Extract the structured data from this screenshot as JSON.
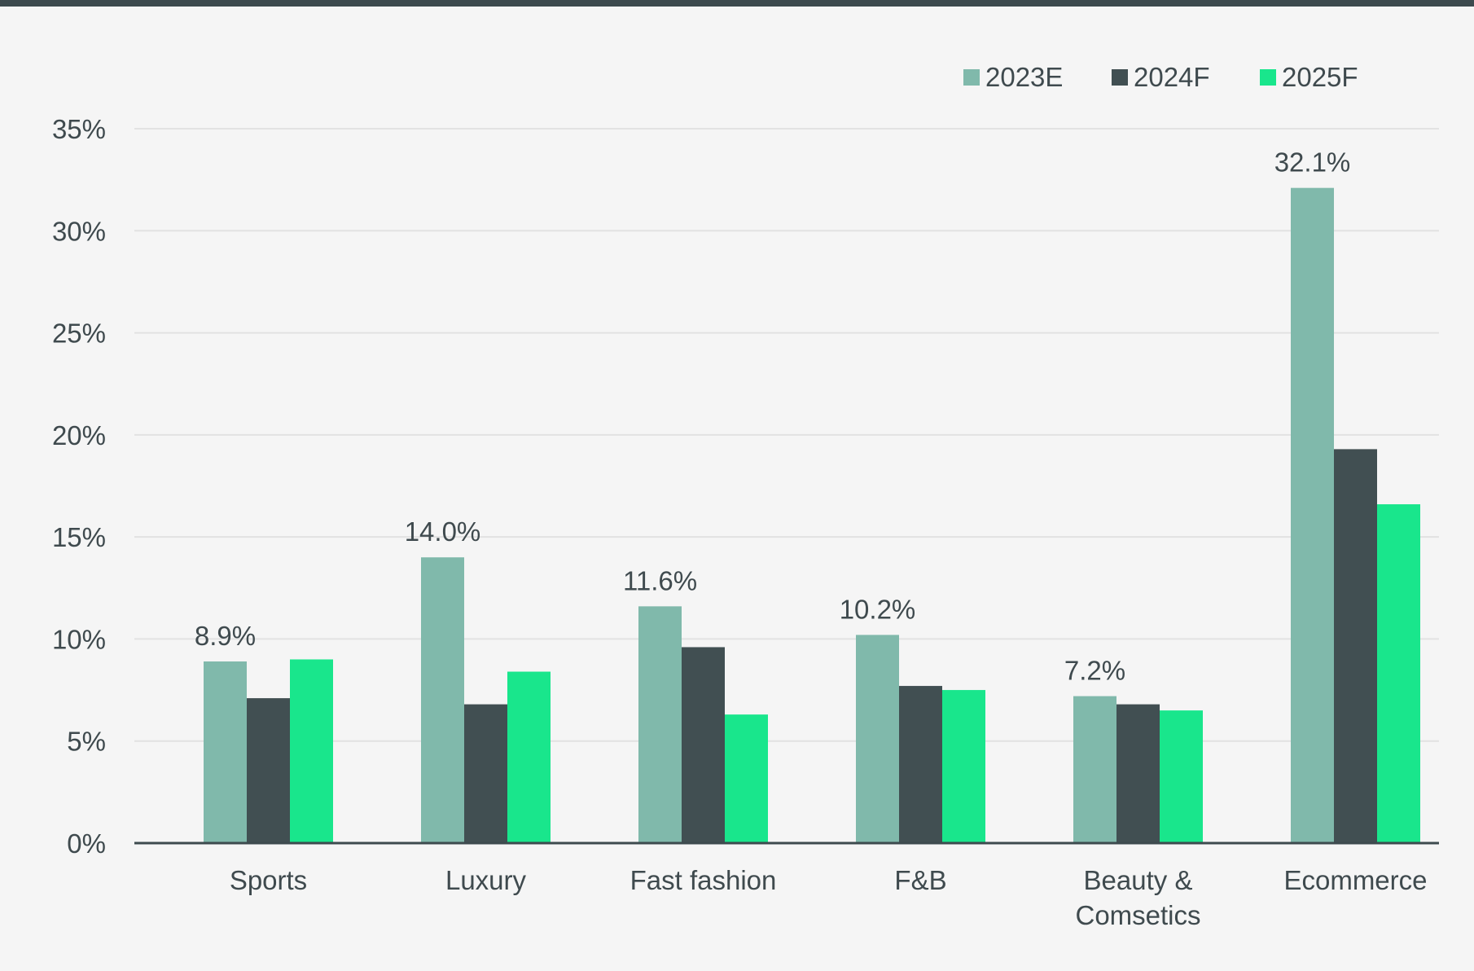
{
  "colors": {
    "background": "#f5f5f5",
    "top_border": "#3d4a4e",
    "gridline": "#e2e2e2",
    "axis": "#3d4a4e",
    "text": "#3f4a4e"
  },
  "chart_data": {
    "type": "bar",
    "title": "",
    "xlabel": "",
    "ylabel": "",
    "ylim": [
      0,
      35
    ],
    "y_ticks": [
      0,
      5,
      10,
      15,
      20,
      25,
      30,
      35
    ],
    "y_tick_labels": [
      "0%",
      "5%",
      "10%",
      "15%",
      "20%",
      "25%",
      "30%",
      "35%"
    ],
    "grid": true,
    "legend_position": "top-right",
    "categories": [
      [
        "Sports"
      ],
      [
        "Luxury"
      ],
      [
        "Fast fashion"
      ],
      [
        "F&B"
      ],
      [
        "Beauty &",
        "Comsetics"
      ],
      [
        "Ecommerce"
      ]
    ],
    "series": [
      {
        "name": "2023E",
        "color": "#80b9ab",
        "values": [
          8.9,
          14.0,
          11.6,
          10.2,
          7.2,
          32.1
        ]
      },
      {
        "name": "2024F",
        "color": "#414f52",
        "values": [
          7.1,
          6.8,
          9.6,
          7.7,
          6.8,
          19.3
        ]
      },
      {
        "name": "2025F",
        "color": "#19e68c",
        "values": [
          9.0,
          8.4,
          6.3,
          7.5,
          6.5,
          16.6
        ]
      }
    ],
    "data_labels": [
      "8.9%",
      "14.0%",
      "11.6%",
      "10.2%",
      "7.2%",
      "32.1%"
    ]
  }
}
